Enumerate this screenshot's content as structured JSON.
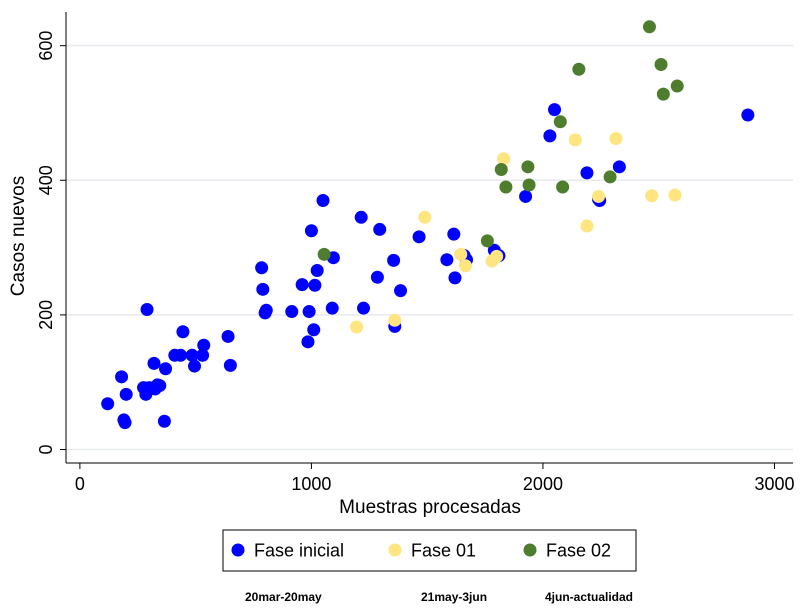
{
  "chart_data": {
    "type": "scatter",
    "xlabel": "Muestras procesadas",
    "ylabel": "Casos nuevos",
    "xlim": [
      -60,
      3080
    ],
    "ylim": [
      -20,
      650
    ],
    "xticks": [
      0,
      1000,
      2000,
      3000
    ],
    "yticks": [
      0,
      200,
      400,
      600
    ],
    "grid": "horizontal",
    "legend_position": "bottom",
    "series": [
      {
        "name": "Fase inicial",
        "color": "#0000ff",
        "points": [
          [
            120,
            68
          ],
          [
            180,
            108
          ],
          [
            190,
            44
          ],
          [
            195,
            40
          ],
          [
            200,
            82
          ],
          [
            275,
            92
          ],
          [
            285,
            82
          ],
          [
            290,
            208
          ],
          [
            300,
            92
          ],
          [
            320,
            128
          ],
          [
            325,
            90
          ],
          [
            335,
            96
          ],
          [
            345,
            95
          ],
          [
            365,
            42
          ],
          [
            370,
            120
          ],
          [
            410,
            140
          ],
          [
            435,
            140
          ],
          [
            445,
            175
          ],
          [
            485,
            140
          ],
          [
            495,
            124
          ],
          [
            530,
            140
          ],
          [
            535,
            155
          ],
          [
            640,
            168
          ],
          [
            650,
            125
          ],
          [
            785,
            270
          ],
          [
            790,
            238
          ],
          [
            800,
            203
          ],
          [
            805,
            207
          ],
          [
            915,
            205
          ],
          [
            960,
            245
          ],
          [
            990,
            205
          ],
          [
            985,
            160
          ],
          [
            1000,
            325
          ],
          [
            1010,
            178
          ],
          [
            1015,
            244
          ],
          [
            1025,
            266
          ],
          [
            1050,
            370
          ],
          [
            1090,
            210
          ],
          [
            1095,
            285
          ],
          [
            1215,
            345
          ],
          [
            1225,
            210
          ],
          [
            1285,
            256
          ],
          [
            1295,
            327
          ],
          [
            1355,
            281
          ],
          [
            1360,
            183
          ],
          [
            1385,
            236
          ],
          [
            1465,
            316
          ],
          [
            1585,
            282
          ],
          [
            1615,
            320
          ],
          [
            1620,
            255
          ],
          [
            1660,
            288
          ],
          [
            1670,
            282
          ],
          [
            1790,
            296
          ],
          [
            1810,
            288
          ],
          [
            1925,
            376
          ],
          [
            2030,
            466
          ],
          [
            2050,
            505
          ],
          [
            2190,
            411
          ],
          [
            2240,
            372
          ],
          [
            2245,
            370
          ],
          [
            2330,
            420
          ],
          [
            2885,
            497
          ]
        ]
      },
      {
        "name": "Fase 01",
        "color": "#ffe57f",
        "points": [
          [
            1195,
            182
          ],
          [
            1360,
            192
          ],
          [
            1490,
            345
          ],
          [
            1645,
            290
          ],
          [
            1665,
            273
          ],
          [
            1780,
            280
          ],
          [
            1800,
            287
          ],
          [
            1830,
            432
          ],
          [
            2140,
            460
          ],
          [
            2190,
            332
          ],
          [
            2240,
            376
          ],
          [
            2315,
            462
          ],
          [
            2470,
            377
          ],
          [
            2570,
            378
          ]
        ]
      },
      {
        "name": "Fase 02",
        "color": "#4f7d2e",
        "points": [
          [
            1055,
            290
          ],
          [
            1760,
            310
          ],
          [
            1820,
            416
          ],
          [
            1840,
            390
          ],
          [
            1935,
            420
          ],
          [
            1940,
            393
          ],
          [
            2075,
            487
          ],
          [
            2085,
            390
          ],
          [
            2155,
            565
          ],
          [
            2290,
            405
          ],
          [
            2460,
            628
          ],
          [
            2510,
            572
          ],
          [
            2520,
            528
          ],
          [
            2580,
            540
          ]
        ]
      }
    ]
  },
  "captions": [
    "20mar-20may",
    "21may-3jun",
    "4jun-actualidad"
  ]
}
